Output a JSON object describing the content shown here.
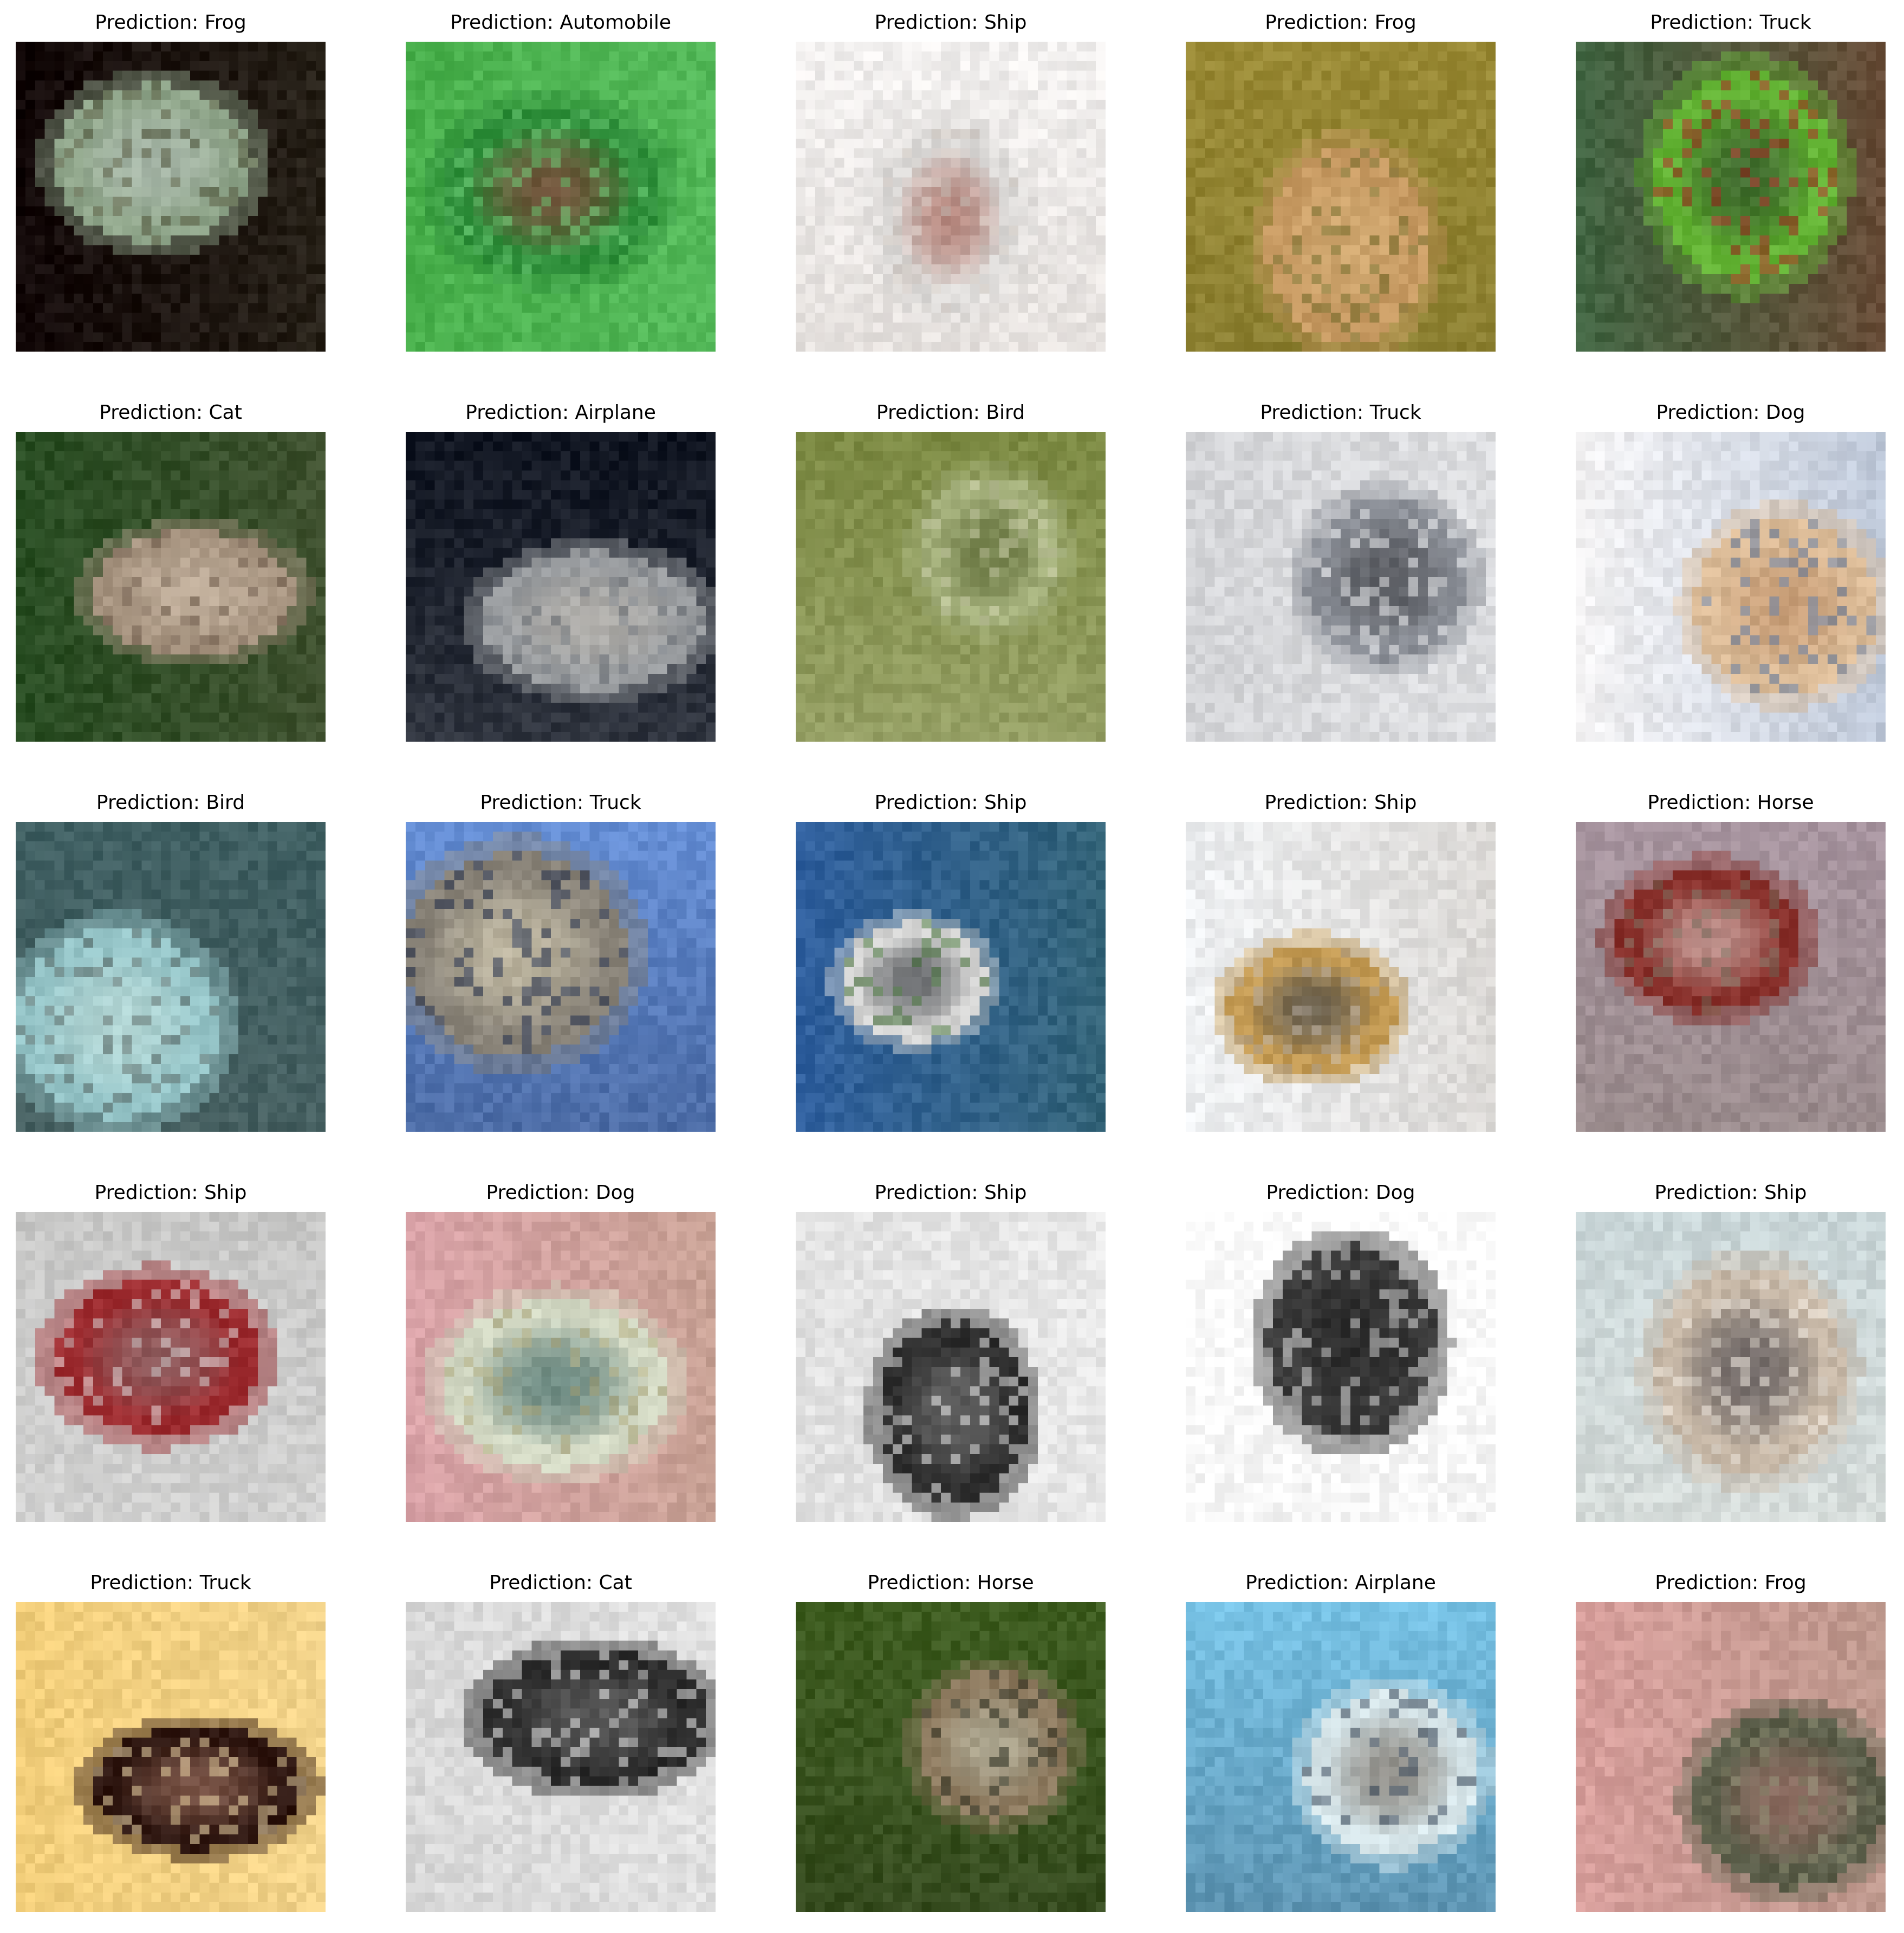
{
  "title_prefix": "Prediction: ",
  "panels": [
    {
      "label": "Prediction: Frog",
      "class": "Frog",
      "colors": [
        "#120808",
        "#8fa58a",
        "#b9c4bf",
        "#4d4f35"
      ]
    },
    {
      "label": "Prediction: Automobile",
      "class": "Automobile",
      "colors": [
        "#49b04c",
        "#2f8f3b",
        "#a8213a",
        "#6acb74"
      ]
    },
    {
      "label": "Prediction: Ship",
      "class": "Ship",
      "colors": [
        "#f2f0ef",
        "#dcdad8",
        "#9a4738",
        "#cfc6bf"
      ]
    },
    {
      "label": "Prediction: Frog",
      "class": "Frog",
      "colors": [
        "#9a8a35",
        "#c79a62",
        "#d7b27a",
        "#6e6a28"
      ]
    },
    {
      "label": "Prediction: Truck",
      "class": "Truck",
      "colors": [
        "#3f6340",
        "#63b334",
        "#24302a",
        "#b51f26"
      ]
    },
    {
      "label": "Prediction: Cat",
      "class": "Cat",
      "colors": [
        "#284d22",
        "#a79480",
        "#d1c0ad",
        "#6b5848"
      ]
    },
    {
      "label": "Prediction: Airplane",
      "class": "Airplane",
      "colors": [
        "#0f1420",
        "#999c9f",
        "#c0bab0",
        "#6f747b"
      ]
    },
    {
      "label": "Prediction: Bird",
      "class": "Bird",
      "colors": [
        "#7c8a43",
        "#a4b07b",
        "#475520",
        "#c7caa6"
      ]
    },
    {
      "label": "Prediction: Truck",
      "class": "Truck",
      "colors": [
        "#d4d5d8",
        "#8b8f97",
        "#2f3034",
        "#eff0f2"
      ]
    },
    {
      "label": "Prediction: Dog",
      "class": "Dog",
      "colors": [
        "#f3f2f3",
        "#dbbb97",
        "#b8865d",
        "#5878a7"
      ]
    },
    {
      "label": "Prediction: Bird",
      "class": "Bird",
      "colors": [
        "#3f5f62",
        "#96c5c8",
        "#c8e2dd",
        "#53605d"
      ]
    },
    {
      "label": "Prediction: Truck",
      "class": "Truck",
      "colors": [
        "#658ed5",
        "#8a8479",
        "#e8dfc1",
        "#1d2b4c"
      ]
    },
    {
      "label": "Prediction: Ship",
      "class": "Ship",
      "colors": [
        "#2f5f9e",
        "#d4d4d3",
        "#1c2026",
        "#3c6d2f"
      ]
    },
    {
      "label": "Prediction: Ship",
      "class": "Ship",
      "colors": [
        "#eef0f2",
        "#c49b54",
        "#25344d",
        "#b8ada1"
      ]
    },
    {
      "label": "Prediction: Horse",
      "class": "Horse",
      "colors": [
        "#a895a0",
        "#88302b",
        "#e6dcd6",
        "#7d7665"
      ]
    },
    {
      "label": "Prediction: Ship",
      "class": "Ship",
      "colors": [
        "#c7c7c6",
        "#9c2b2f",
        "#858585",
        "#e4e4e4"
      ]
    },
    {
      "label": "Prediction: Dog",
      "class": "Dog",
      "colors": [
        "#d9a2a7",
        "#d3d9c4",
        "#1a4b4d",
        "#a7a071"
      ]
    },
    {
      "label": "Prediction: Ship",
      "class": "Ship",
      "colors": [
        "#e1e1e1",
        "#2d2d2d",
        "#8b8b8b",
        "#f4f4f4"
      ]
    },
    {
      "label": "Prediction: Dog",
      "class": "Dog",
      "colors": [
        "#fefefe",
        "#3b3b3b",
        "#232323",
        "#e6e6e6"
      ]
    },
    {
      "label": "Prediction: Ship",
      "class": "Ship",
      "colors": [
        "#c9d6d8",
        "#c7b8a7",
        "#2f2d38",
        "#eee7dd"
      ]
    },
    {
      "label": "Prediction: Truck",
      "class": "Truck",
      "colors": [
        "#f1cd79",
        "#2e1610",
        "#b88773",
        "#f7e2b0"
      ]
    },
    {
      "label": "Prediction: Cat",
      "class": "Cat",
      "colors": [
        "#d8d8d8",
        "#2c2c2c",
        "#7d7d7d",
        "#f2f2f2"
      ]
    },
    {
      "label": "Prediction: Horse",
      "class": "Horse",
      "colors": [
        "#3e5d20",
        "#8d7a5f",
        "#c5c9b6",
        "#262a1d"
      ]
    },
    {
      "label": "Prediction: Airplane",
      "class": "Airplane",
      "colors": [
        "#77c2e5",
        "#d7e6ea",
        "#5a4a3c",
        "#2c3c50"
      ]
    },
    {
      "label": "Prediction: Frog",
      "class": "Frog",
      "colors": [
        "#d79e9b",
        "#5c5f4b",
        "#b57874",
        "#8a8a6f"
      ]
    }
  ]
}
